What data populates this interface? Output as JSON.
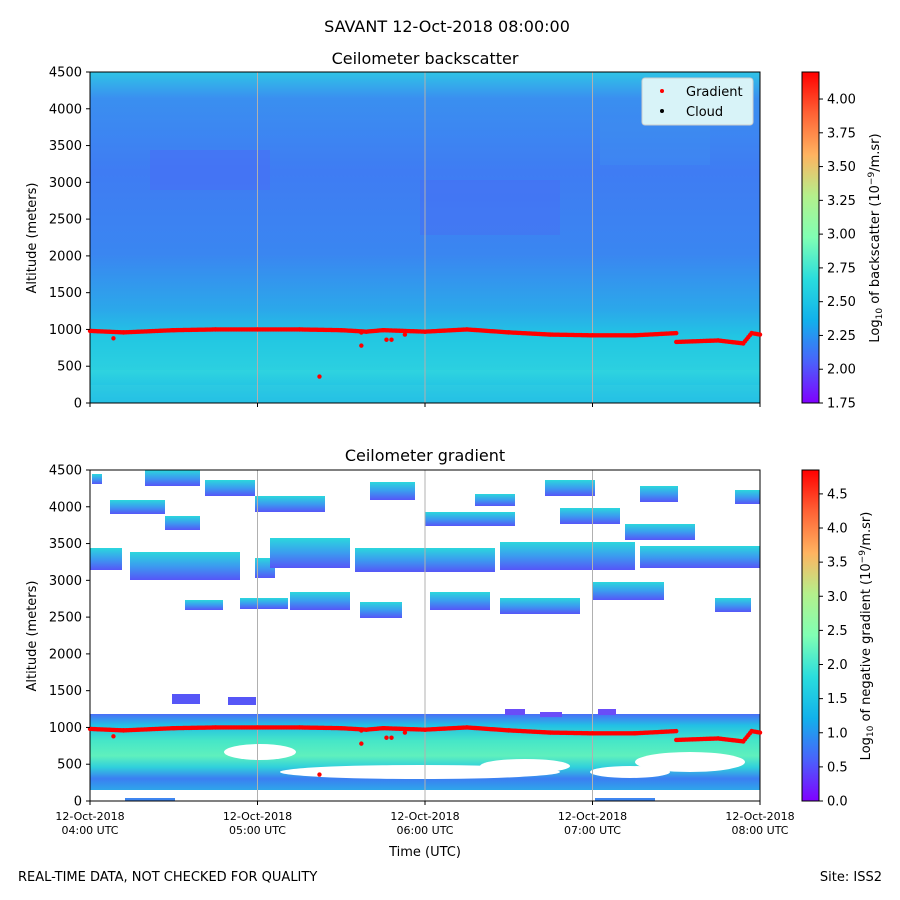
{
  "suptitle": "SAVANT 12-Oct-2018 08:00:00",
  "footer": {
    "left": "REAL-TIME DATA, NOT CHECKED FOR QUALITY",
    "right": "Site: ISS2"
  },
  "colors": {
    "gradient_marker": "#ff0000",
    "cloud_marker": "#000000",
    "grid": "#b0b0b0",
    "legend_bg": "#d8f3f8"
  },
  "chart_data": [
    {
      "type": "heatmap",
      "title": "Ceilometer backscatter",
      "xlabel": "",
      "ylabel": "Altitude (meters)",
      "ylim": [
        0,
        4500
      ],
      "yticks": [
        "0",
        "500",
        "1000",
        "1500",
        "2000",
        "2500",
        "3000",
        "3500",
        "4000",
        "4500"
      ],
      "xticks": [
        [
          "",
          ""
        ],
        [
          "",
          ""
        ],
        [
          "",
          ""
        ],
        [
          "",
          ""
        ],
        [
          "",
          ""
        ]
      ],
      "grid": "vertical lines at x ticks",
      "legend": {
        "placement": "top-right",
        "entries": [
          {
            "label": "Gradient",
            "color": "#ff0000"
          },
          {
            "label": "Cloud",
            "color": "#000000"
          }
        ]
      },
      "colorbar": {
        "label": "Log10 of backscatter (10^-9/m.sr)",
        "range": [
          1.75,
          4.2
        ],
        "ticks": [
          "1.75",
          "2.00",
          "2.25",
          "2.50",
          "2.75",
          "3.00",
          "3.25",
          "3.50",
          "3.75",
          "4.00"
        ]
      },
      "field_description": "backscatter mostly 2.1-2.5; boundary layer below ~1000 m brighter (~2.4-2.5), upper air ~2.2",
      "series": [
        {
          "name": "Gradient",
          "x_hours_utc": [
            4.0,
            4.2,
            4.5,
            4.75,
            5.0,
            5.25,
            5.5,
            5.65,
            5.75,
            6.0,
            6.25,
            6.5,
            6.75,
            7.0,
            7.25,
            7.5,
            7.5,
            7.75,
            7.9,
            7.95,
            8.0
          ],
          "altitude_m": [
            980,
            960,
            990,
            1000,
            1000,
            1000,
            990,
            970,
            990,
            970,
            1000,
            960,
            930,
            920,
            920,
            950,
            830,
            850,
            810,
            950,
            930
          ]
        },
        {
          "name": "Gradient outliers",
          "x_hours_utc": [
            4.14,
            5.62,
            5.62,
            5.37,
            5.77,
            5.8,
            5.88,
            5.62
          ],
          "altitude_m": [
            880,
            960,
            780,
            360,
            860,
            860,
            930,
            960
          ]
        },
        {
          "name": "Cloud",
          "x_hours_utc": [],
          "altitude_m": []
        }
      ]
    },
    {
      "type": "heatmap",
      "title": "Ceilometer gradient",
      "xlabel": "Time (UTC)",
      "ylabel": "Altitude (meters)",
      "ylim": [
        0,
        4500
      ],
      "yticks": [
        "0",
        "500",
        "1000",
        "1500",
        "2000",
        "2500",
        "3000",
        "3500",
        "4000",
        "4500"
      ],
      "xticks": [
        [
          "12-Oct-2018",
          "04:00 UTC"
        ],
        [
          "12-Oct-2018",
          "05:00 UTC"
        ],
        [
          "12-Oct-2018",
          "06:00 UTC"
        ],
        [
          "12-Oct-2018",
          "07:00 UTC"
        ],
        [
          "12-Oct-2018",
          "08:00 UTC"
        ]
      ],
      "grid": "vertical lines at x ticks",
      "colorbar": {
        "label": "Log10 of negative gradient (10^-9/m.sr)",
        "range": [
          0.0,
          4.85
        ],
        "ticks": [
          "0.0",
          "0.5",
          "1.0",
          "1.5",
          "2.0",
          "2.5",
          "3.0",
          "3.5",
          "4.0",
          "4.5"
        ]
      },
      "field_description": "values ~0.5-2.0 in boundary layer below ~1150 m with white gap ~500-750 m; scattered patches near 2600, 3200, 3600, 4200 m; white (no data / positive gradient) elsewhere",
      "series": [
        {
          "name": "Gradient",
          "x_hours_utc": [
            4.0,
            4.2,
            4.5,
            4.75,
            5.0,
            5.25,
            5.5,
            5.65,
            5.75,
            6.0,
            6.25,
            6.5,
            6.75,
            7.0,
            7.25,
            7.5,
            7.5,
            7.75,
            7.9,
            7.95,
            8.0
          ],
          "altitude_m": [
            980,
            960,
            990,
            1000,
            1000,
            1000,
            990,
            970,
            990,
            970,
            1000,
            960,
            930,
            920,
            920,
            950,
            830,
            850,
            810,
            950,
            930
          ]
        }
      ]
    }
  ]
}
